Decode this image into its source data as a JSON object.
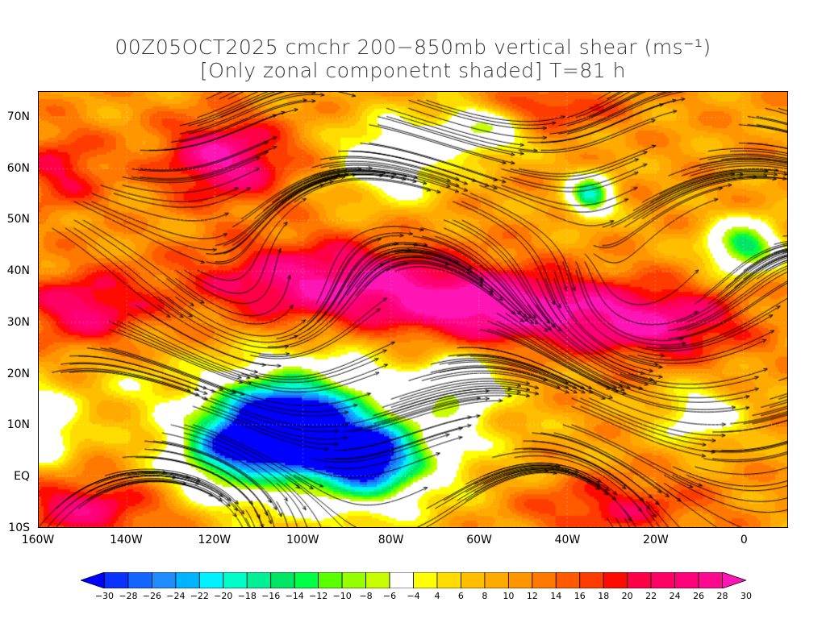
{
  "title": {
    "line1": "00Z05OCT2025 cmchr 200−850mb vertical shear (ms⁻¹)",
    "line2": "[Only zonal componetnt shaded] T=81 h"
  },
  "map": {
    "lon_range": [
      -160,
      10
    ],
    "lat_range": [
      -10,
      75
    ],
    "y_axis_labels": [
      {
        "lat": 70,
        "text": "70N"
      },
      {
        "lat": 60,
        "text": "60N"
      },
      {
        "lat": 50,
        "text": "50N"
      },
      {
        "lat": 40,
        "text": "40N"
      },
      {
        "lat": 30,
        "text": "30N"
      },
      {
        "lat": 20,
        "text": "20N"
      },
      {
        "lat": 10,
        "text": "10N"
      },
      {
        "lat": 0,
        "text": "EQ"
      },
      {
        "lat": -10,
        "text": "10S"
      }
    ],
    "x_axis_labels": [
      {
        "lon": -160,
        "text": "160W"
      },
      {
        "lon": -140,
        "text": "140W"
      },
      {
        "lon": -120,
        "text": "120W"
      },
      {
        "lon": -100,
        "text": "100W"
      },
      {
        "lon": -80,
        "text": "80W"
      },
      {
        "lon": -60,
        "text": "60W"
      },
      {
        "lon": -40,
        "text": "40W"
      },
      {
        "lon": -20,
        "text": "20W"
      },
      {
        "lon": 0,
        "text": "0"
      }
    ]
  },
  "colorbar": {
    "levels": [
      "−30",
      "−28",
      "−26",
      "−24",
      "−22",
      "−20",
      "−18",
      "−16",
      "−14",
      "−12",
      "−10",
      "−8",
      "−6",
      "−4",
      "4",
      "6",
      "8",
      "10",
      "12",
      "14",
      "16",
      "18",
      "20",
      "22",
      "24",
      "26",
      "28",
      "30"
    ],
    "colors": [
      "#0000ff",
      "#0a32ff",
      "#1464ff",
      "#1e8cff",
      "#00b4ff",
      "#00f0ff",
      "#00ffc8",
      "#00f096",
      "#00e664",
      "#00ff46",
      "#5aff00",
      "#96ff00",
      "#c8ff00",
      "#ffffff",
      "#ffff00",
      "#ffdc00",
      "#ffbe00",
      "#ffaa00",
      "#ff9600",
      "#ff7800",
      "#ff5a00",
      "#ff3c00",
      "#ff0a00",
      "#ff0046",
      "#ff0064",
      "#ff0078",
      "#ff0a8c",
      "#ff14b4"
    ]
  }
}
